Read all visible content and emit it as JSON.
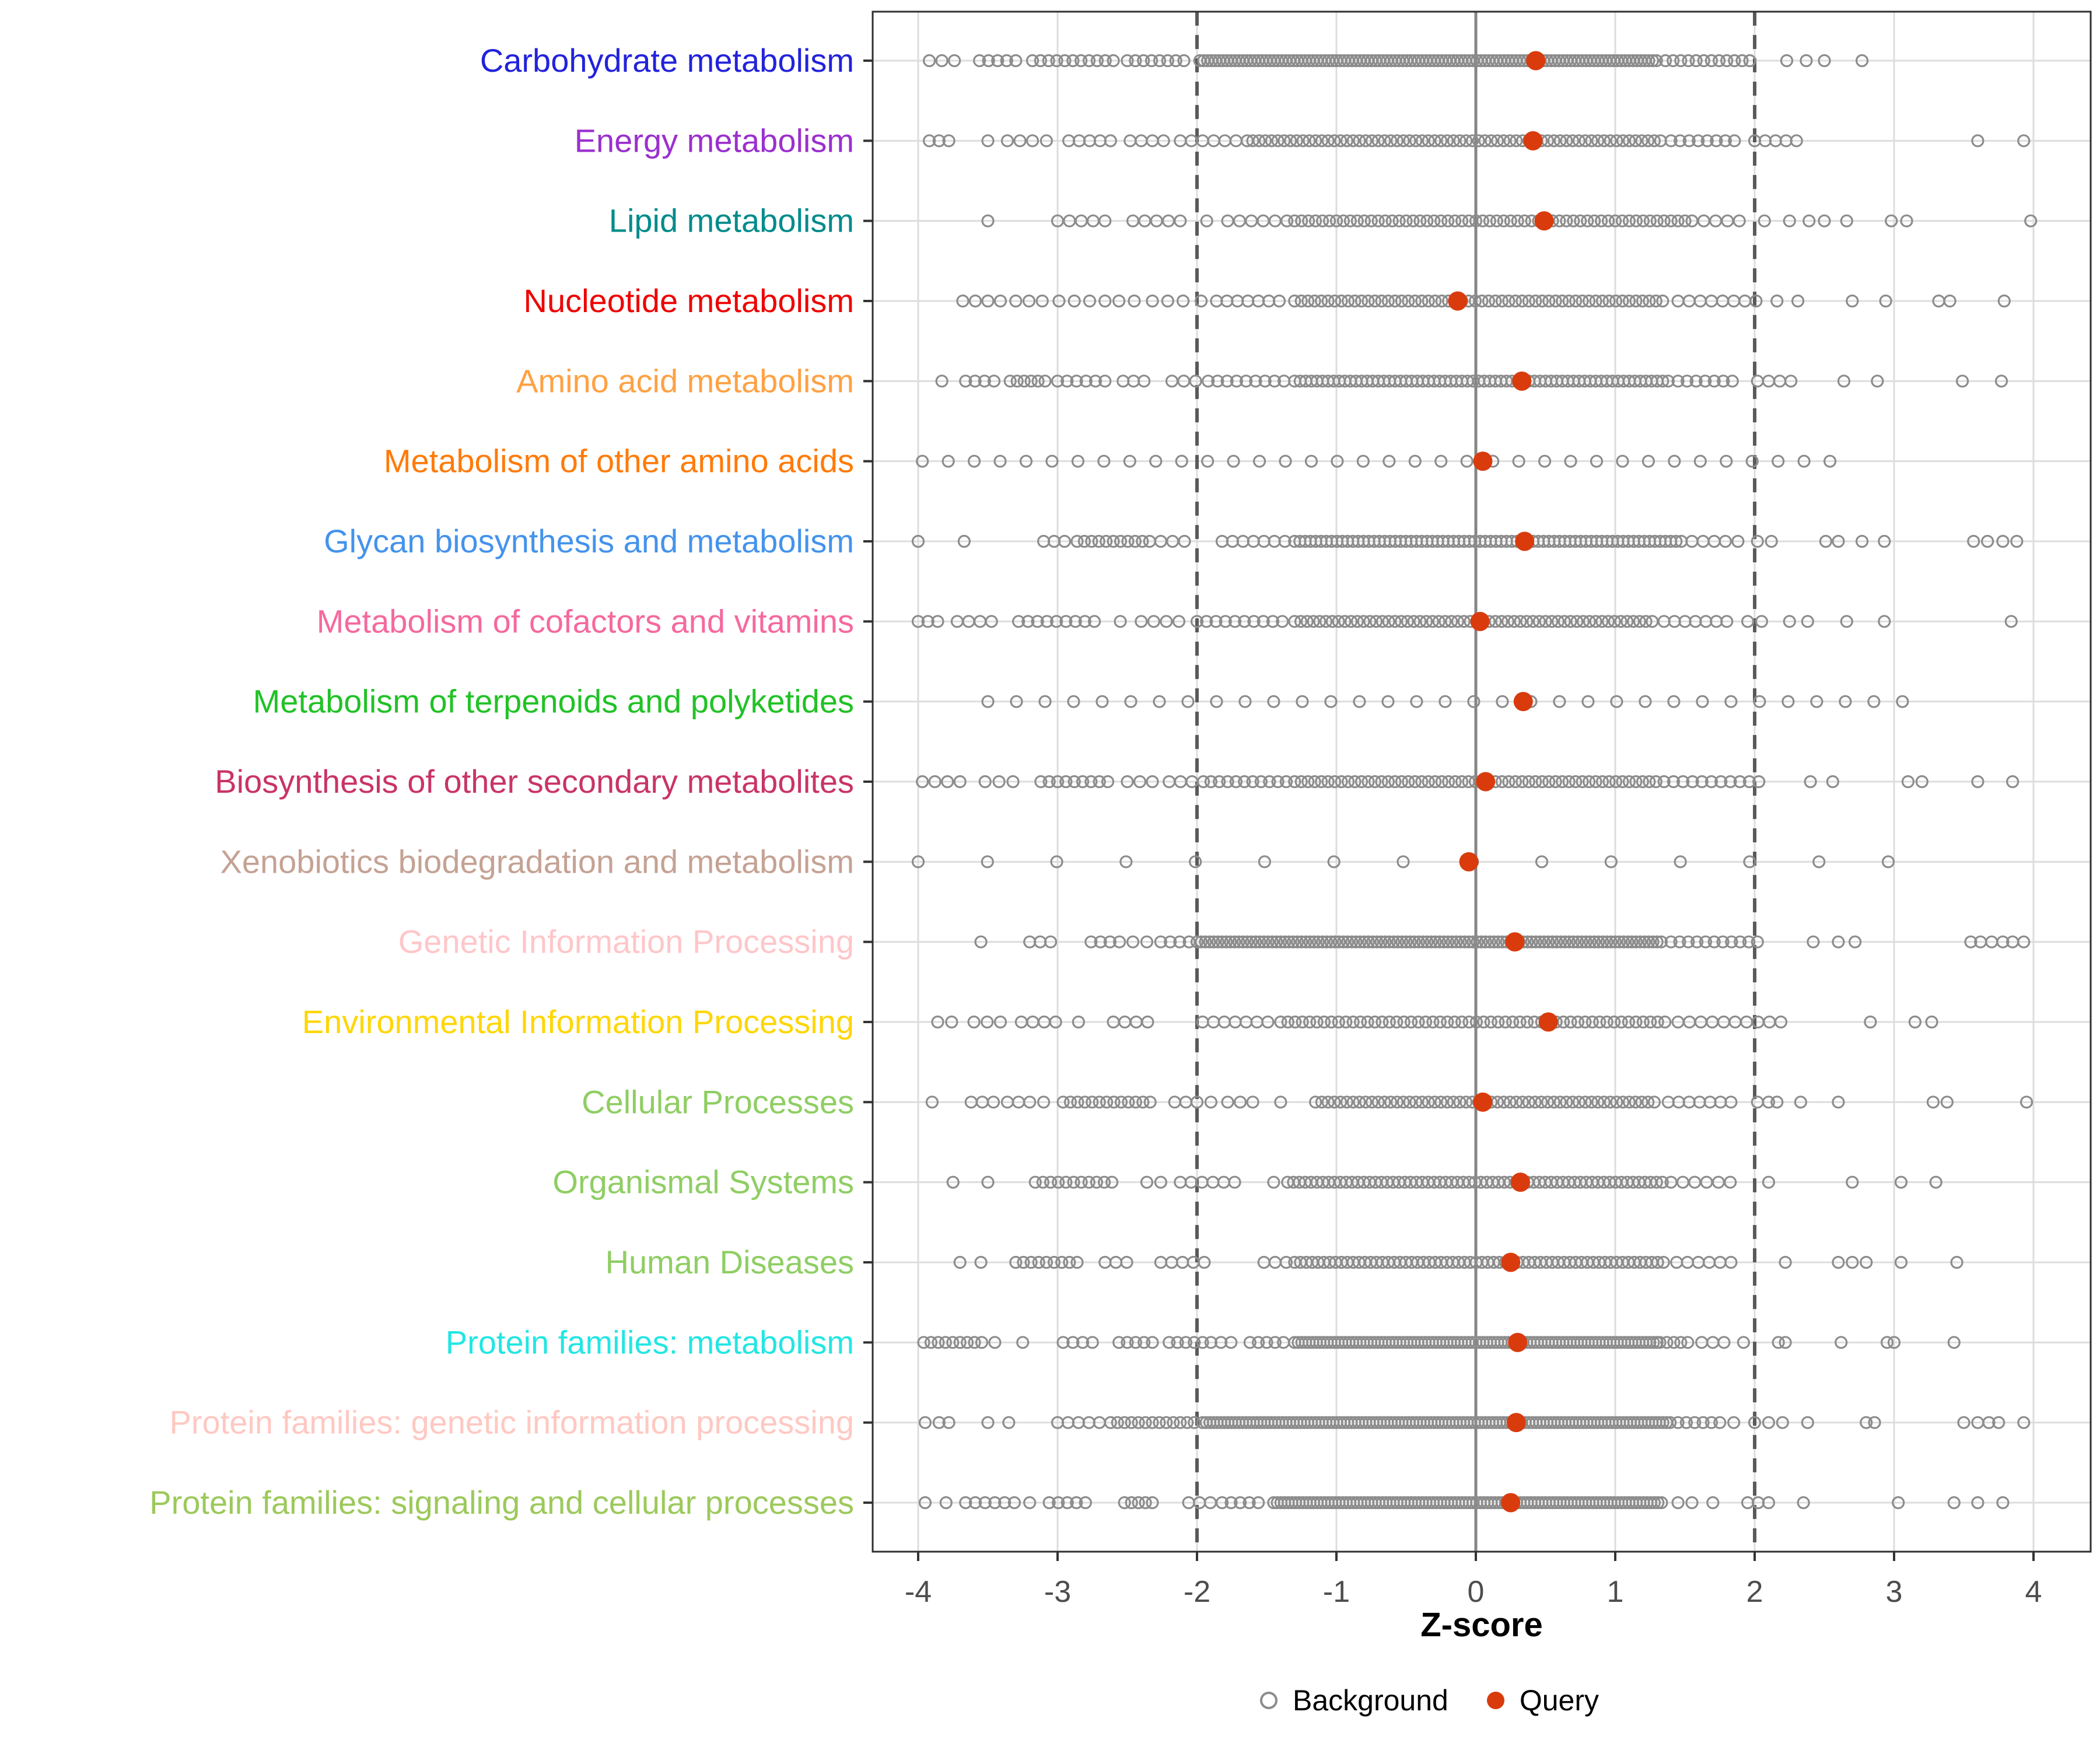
{
  "chart_data": {
    "type": "scatter",
    "subtype": "strip-plot",
    "xlabel": "Z-score",
    "x_ticks": [
      -4,
      -3,
      -2,
      -1,
      0,
      1,
      2,
      3,
      4
    ],
    "xlim": [
      -4.33,
      4.41
    ],
    "grid": "on",
    "reference_lines": {
      "solid": [
        0
      ],
      "dashed": [
        -2,
        2
      ]
    },
    "background_color": "#8C8C8C",
    "query_color": "#D93B0D",
    "legend": [
      {
        "label": "Background",
        "marker": "open-circle",
        "color": "#8C8C8C"
      },
      {
        "label": "Query",
        "marker": "filled-circle",
        "color": "#D93B0D"
      }
    ],
    "categories": [
      {
        "label": "Carbohydrate metabolism",
        "color": "#2222DC",
        "query": 0.43,
        "background_runs": [
          [
            -3.92,
            -3.74,
            0.09
          ],
          [
            -3.56,
            -3.3,
            0.065
          ],
          [
            -3.18,
            -2.6,
            0.058
          ],
          [
            -2.5,
            -2.04,
            0.058
          ],
          [
            -1.98,
            1.32,
            0.028
          ],
          [
            1.36,
            2.0,
            0.055
          ]
        ],
        "background_points": [
          2.23,
          2.37,
          2.5,
          2.77
        ]
      },
      {
        "label": "Energy metabolism",
        "color": "#9B30CE",
        "query": 0.41,
        "background_runs": [
          [
            -3.92,
            -3.78,
            0.07
          ],
          [
            -3.36,
            -3.18,
            0.09
          ],
          [
            -2.92,
            -2.56,
            0.075
          ],
          [
            -2.48,
            -2.24,
            0.08
          ],
          [
            -2.12,
            -1.64,
            0.08
          ],
          [
            -1.6,
            1.35,
            0.045
          ],
          [
            1.4,
            1.86,
            0.065
          ],
          [
            2.0,
            2.3,
            0.075
          ]
        ],
        "background_points": [
          -3.5,
          -3.08,
          3.6,
          3.93
        ]
      },
      {
        "label": "Lipid metabolism",
        "color": "#008B8B",
        "query": 0.49,
        "background_runs": [
          [
            -3.0,
            -2.64,
            0.085
          ],
          [
            -2.46,
            -2.04,
            0.085
          ],
          [
            -1.78,
            -1.34,
            0.085
          ],
          [
            -1.3,
            1.5,
            0.05
          ],
          [
            1.55,
            1.97,
            0.085
          ]
        ],
        "background_points": [
          -3.5,
          -1.93,
          2.07,
          2.25,
          2.39,
          2.5,
          2.66,
          2.98,
          3.09,
          3.98
        ]
      },
      {
        "label": "Nucleotide metabolism",
        "color": "#EE0000",
        "query": -0.13,
        "background_runs": [
          [
            -3.68,
            -3.4,
            0.09
          ],
          [
            -3.3,
            -3.1,
            0.095
          ],
          [
            -2.99,
            -2.87,
            0.11
          ],
          [
            -2.77,
            -2.65,
            0.11
          ],
          [
            -2.56,
            -2.44,
            0.11
          ],
          [
            -2.32,
            -2.08,
            0.11
          ],
          [
            -1.86,
            -1.36,
            0.075
          ],
          [
            -1.3,
            1.35,
            0.048
          ],
          [
            1.45,
            2.03,
            0.08
          ]
        ],
        "background_points": [
          -1.97,
          2.16,
          2.31,
          2.7,
          2.94,
          3.32,
          3.4,
          3.79
        ]
      },
      {
        "label": "Amino acid metabolism",
        "color": "#FFA143",
        "query": 0.33,
        "background_runs": [
          [
            -3.66,
            -3.4,
            0.068
          ],
          [
            -3.34,
            -3.08,
            0.05
          ],
          [
            -3.0,
            -2.64,
            0.068
          ],
          [
            -2.53,
            -2.37,
            0.075
          ],
          [
            -2.18,
            -2.0,
            0.085
          ],
          [
            -1.92,
            -1.36,
            0.068
          ],
          [
            -1.3,
            1.4,
            0.04
          ],
          [
            1.45,
            1.86,
            0.065
          ],
          [
            2.02,
            2.28,
            0.08
          ]
        ],
        "background_points": [
          -3.83,
          2.64,
          2.88,
          3.49,
          3.77
        ]
      },
      {
        "label": "Metabolism of other amino acids",
        "color": "#FF7B0A",
        "query": 0.05,
        "background_runs": [
          [
            -3.97,
            2.72,
            0.186
          ]
        ],
        "background_points": []
      },
      {
        "label": "Glycan biosynthesis and metabolism",
        "color": "#4493EC",
        "query": 0.35,
        "background_runs": [
          [
            -3.1,
            -2.94,
            0.075
          ],
          [
            -2.86,
            -2.3,
            0.052
          ],
          [
            -2.26,
            -2.04,
            0.085
          ],
          [
            -1.82,
            -1.36,
            0.075
          ],
          [
            -1.3,
            1.5,
            0.038
          ],
          [
            1.55,
            1.8,
            0.08
          ]
        ],
        "background_points": [
          -4.0,
          -3.67,
          1.88,
          2.02,
          2.12,
          2.51,
          2.6,
          2.77,
          2.93,
          3.57,
          3.67,
          3.78,
          3.88
        ]
      },
      {
        "label": "Metabolism of cofactors and vitamins",
        "color": "#F5699E",
        "query": 0.03,
        "background_runs": [
          [
            -4.0,
            -3.86,
            0.07
          ],
          [
            -3.72,
            -3.46,
            0.082
          ],
          [
            -3.28,
            -2.68,
            0.068
          ],
          [
            -2.4,
            -2.1,
            0.09
          ],
          [
            -2.0,
            -1.36,
            0.068
          ],
          [
            -1.3,
            1.3,
            0.045
          ],
          [
            1.35,
            1.83,
            0.075
          ]
        ],
        "background_points": [
          -2.55,
          1.95,
          2.05,
          2.25,
          2.38,
          2.66,
          2.93,
          3.84
        ]
      },
      {
        "label": "Metabolism of terpenoids and polyketides",
        "color": "#21C226",
        "query": 0.34,
        "background_runs": [
          [
            -3.5,
            3.13,
            0.205
          ]
        ],
        "background_points": []
      },
      {
        "label": "Biosynthesis of other secondary metabolites",
        "color": "#C93467",
        "query": 0.07,
        "background_runs": [
          [
            -3.97,
            -3.7,
            0.09
          ],
          [
            -3.52,
            -3.3,
            0.1
          ],
          [
            -3.12,
            -2.6,
            0.06
          ],
          [
            -2.5,
            -2.3,
            0.09
          ],
          [
            -2.2,
            -1.94,
            0.082
          ],
          [
            -1.9,
            -1.36,
            0.06
          ],
          [
            -1.3,
            1.3,
            0.048
          ],
          [
            1.35,
            2.05,
            0.068
          ]
        ],
        "background_points": [
          2.4,
          2.56,
          3.1,
          3.2,
          3.6,
          3.85
        ]
      },
      {
        "label": "Xenobiotics biodegradation and metabolism",
        "color": "#C5A294",
        "query": -0.05,
        "background_runs": [
          [
            -4.0,
            3.43,
            0.497
          ]
        ],
        "background_points": []
      },
      {
        "label": "Genetic Information Processing",
        "color": "#FFC6C9",
        "query": 0.28,
        "background_runs": [
          [
            -3.2,
            -3.04,
            0.075
          ],
          [
            -2.76,
            -2.54,
            0.068
          ],
          [
            -2.46,
            -2.34,
            0.1
          ],
          [
            -2.26,
            -2.04,
            0.068
          ],
          [
            -2.0,
            1.35,
            0.03
          ],
          [
            1.4,
            2.02,
            0.062
          ]
        ],
        "background_points": [
          -3.55,
          2.42,
          2.6,
          2.72,
          3.55,
          3.62,
          3.7,
          3.78,
          3.85,
          3.93
        ]
      },
      {
        "label": "Environmental Information Processing",
        "color": "#FFD602",
        "query": 0.52,
        "background_runs": [
          [
            -3.86,
            -3.74,
            0.1
          ],
          [
            -3.6,
            -3.4,
            0.095
          ],
          [
            -3.26,
            -3.0,
            0.082
          ],
          [
            -2.6,
            -2.34,
            0.082
          ],
          [
            -1.96,
            -1.44,
            0.078
          ],
          [
            -1.4,
            1.4,
            0.052
          ],
          [
            1.45,
            2.24,
            0.082
          ]
        ],
        "background_points": [
          -2.85,
          2.83,
          3.15,
          3.27
        ]
      },
      {
        "label": "Cellular Processes",
        "color": "#8FCE63",
        "query": 0.05,
        "background_runs": [
          [
            -3.62,
            -3.44,
            0.08
          ],
          [
            -3.36,
            -3.2,
            0.08
          ],
          [
            -2.96,
            -2.3,
            0.052
          ],
          [
            -2.16,
            -2.0,
            0.08
          ],
          [
            -1.78,
            -1.58,
            0.09
          ],
          [
            -1.15,
            1.32,
            0.045
          ],
          [
            1.38,
            1.85,
            0.075
          ]
        ],
        "background_points": [
          -3.9,
          -3.1,
          -1.9,
          -1.4,
          2.02,
          2.1,
          2.16,
          2.33,
          2.6,
          3.28,
          3.38,
          3.95
        ]
      },
      {
        "label": "Organismal Systems",
        "color": "#8FCE63",
        "query": 0.32,
        "background_runs": [
          [
            -3.16,
            -2.6,
            0.055
          ],
          [
            -2.36,
            -2.24,
            0.1
          ],
          [
            -2.12,
            -1.7,
            0.078
          ],
          [
            -1.35,
            1.35,
            0.042
          ],
          [
            1.4,
            1.86,
            0.085
          ]
        ],
        "background_points": [
          -3.75,
          -3.5,
          -1.45,
          2.1,
          2.7,
          3.05,
          3.3
        ]
      },
      {
        "label": "Human Diseases",
        "color": "#8FCE63",
        "query": 0.25,
        "background_runs": [
          [
            -3.3,
            -2.84,
            0.055
          ],
          [
            -2.66,
            -2.5,
            0.078
          ],
          [
            -2.26,
            -1.94,
            0.078
          ],
          [
            -1.52,
            -1.34,
            0.08
          ],
          [
            -1.3,
            1.38,
            0.042
          ],
          [
            1.44,
            1.84,
            0.078
          ]
        ],
        "background_points": [
          -3.7,
          -3.55,
          2.22,
          2.6,
          2.7,
          2.8,
          3.05,
          3.45
        ]
      },
      {
        "label": "Protein families: metabolism",
        "color": "#23E6E3",
        "query": 0.3,
        "background_runs": [
          [
            -3.96,
            -3.54,
            0.052
          ],
          [
            -2.96,
            -2.74,
            0.07
          ],
          [
            -2.56,
            -2.3,
            0.06
          ],
          [
            -2.2,
            -1.94,
            0.06
          ],
          [
            -1.9,
            -1.74,
            0.072
          ],
          [
            -1.62,
            -1.34,
            0.06
          ],
          [
            -1.3,
            1.3,
            0.026
          ],
          [
            1.32,
            1.56,
            0.05
          ]
        ],
        "background_points": [
          -3.45,
          -3.25,
          1.62,
          1.7,
          1.78,
          1.92,
          2.17,
          2.22,
          2.62,
          2.95,
          3.0,
          3.43
        ]
      },
      {
        "label": "Protein families: genetic information processing",
        "color": "#FFC8C2",
        "query": 0.29,
        "background_runs": [
          [
            -3.0,
            -2.7,
            0.075
          ],
          [
            -2.62,
            -2.0,
            0.05
          ],
          [
            -1.96,
            1.4,
            0.026
          ],
          [
            1.45,
            1.76,
            0.06
          ]
        ],
        "background_points": [
          -3.95,
          -3.85,
          -3.78,
          -3.5,
          -3.35,
          1.85,
          2.0,
          2.1,
          2.2,
          2.38,
          2.8,
          2.86,
          3.5,
          3.6,
          3.68,
          3.75,
          3.93
        ]
      },
      {
        "label": "Protein families: signaling and cellular processes",
        "color": "#9CC95B",
        "query": 0.25,
        "background_runs": [
          [
            -3.66,
            -3.3,
            0.07
          ],
          [
            -3.06,
            -2.8,
            0.065
          ],
          [
            -2.52,
            -2.3,
            0.05
          ],
          [
            -2.06,
            -1.9,
            0.078
          ],
          [
            -1.82,
            -1.5,
            0.065
          ],
          [
            -1.45,
            1.35,
            0.026
          ],
          [
            1.95,
            2.1,
            0.075
          ]
        ],
        "background_points": [
          -3.95,
          -3.8,
          -3.2,
          1.45,
          1.55,
          1.7,
          2.35,
          3.03,
          3.43,
          3.6,
          3.78
        ]
      }
    ]
  },
  "style_colors": {
    "panel_border": "#2F2F2F",
    "grid_line": "#DDDDDD",
    "zero_line": "#858585",
    "dashed_line": "#5A5A5A",
    "tick_label": "#4D4D4D",
    "axis_tick": "#333333"
  }
}
